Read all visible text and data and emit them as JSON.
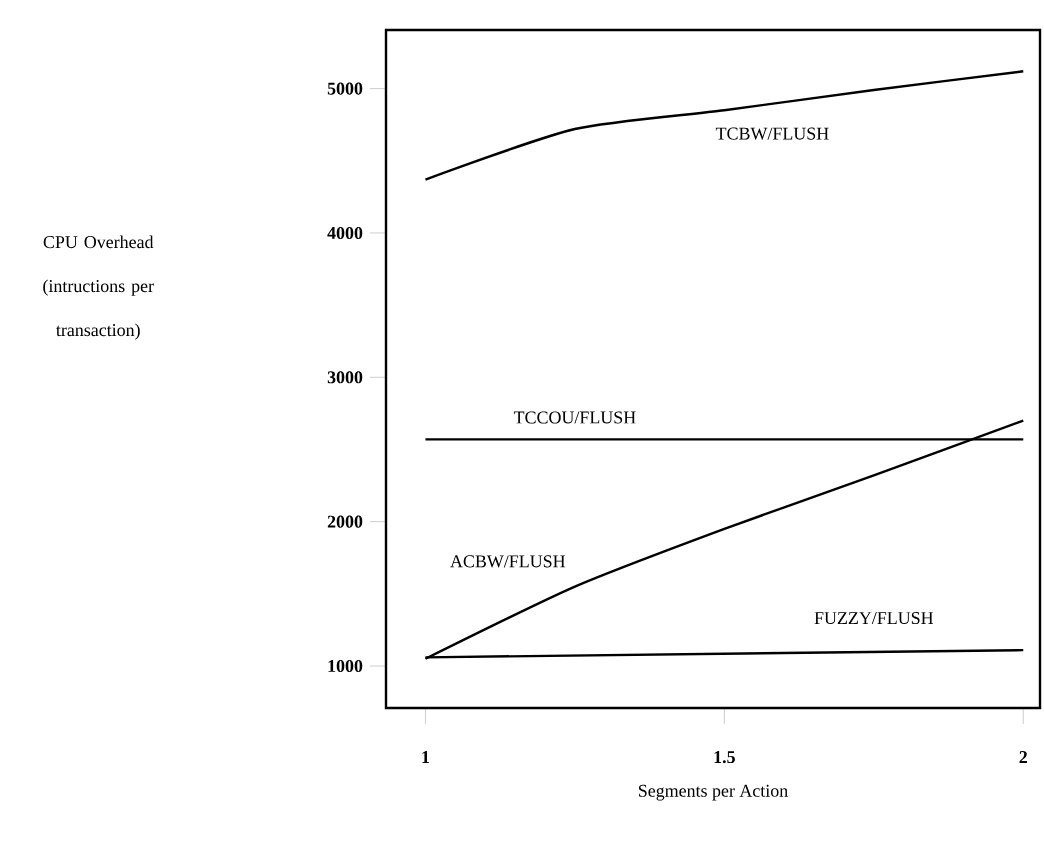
{
  "chart_data": {
    "type": "line",
    "xlabel": "Segments per Action",
    "ylabel": "CPU Overhead (intructions per transaction)",
    "x": [
      1,
      1.25,
      1.5,
      1.75,
      2
    ],
    "xlim": [
      0.934,
      2.028
    ],
    "ylim": [
      709,
      5406
    ],
    "xticks": [
      1,
      1.5,
      2
    ],
    "yticks": [
      1000,
      2000,
      3000,
      4000,
      5000
    ],
    "grid": false,
    "marker": "none",
    "line_style": "solid",
    "series": [
      {
        "name": "TCBW/FLUSH",
        "color": "#000000",
        "values": [
          4370,
          4720,
          4850,
          4990,
          5120
        ]
      },
      {
        "name": "TCCOU/FLUSH",
        "color": "#000000",
        "values": [
          2570,
          2570,
          2570,
          2570,
          2570
        ]
      },
      {
        "name": "ACBW/FLUSH",
        "color": "#000000",
        "values": [
          1050,
          1550,
          1950,
          2320,
          2700
        ]
      },
      {
        "name": "FUZZY/FLUSH",
        "color": "#000000",
        "x": [
          1,
          2
        ],
        "values": [
          1060,
          1110
        ]
      }
    ]
  }
}
